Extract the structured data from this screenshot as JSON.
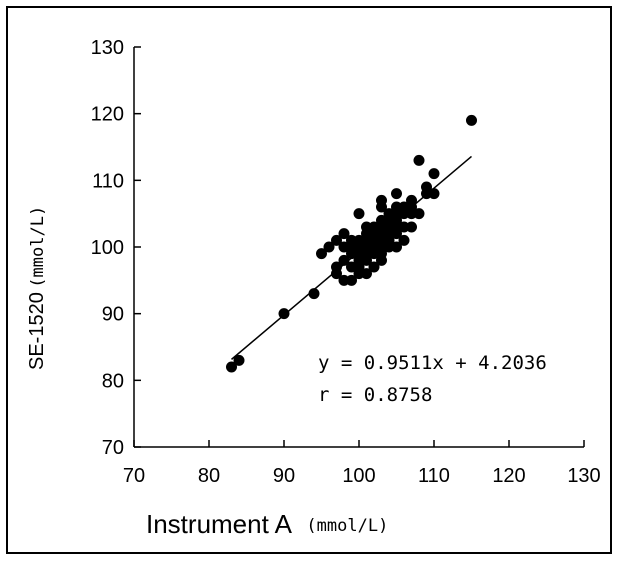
{
  "chart_data": {
    "type": "scatter",
    "title": "",
    "xlabel": "Instrument A",
    "xlabel_unit": "(mmol/L)",
    "ylabel": "SE-1520",
    "ylabel_unit": "(mmol/L)",
    "xlim": [
      70,
      130
    ],
    "ylim": [
      70,
      130
    ],
    "x_ticks": [
      "70",
      "80",
      "90",
      "100",
      "110",
      "120",
      "130"
    ],
    "y_ticks": [
      "70",
      "80",
      "90",
      "100",
      "110",
      "120",
      "130"
    ],
    "grid": false,
    "legend": "none",
    "regression": {
      "slope": 0.9511,
      "intercept": 4.2036,
      "x_range": [
        83,
        115
      ],
      "equation_label": "y = 0.9511x + 4.2036",
      "r_label": "r = 0.8758"
    },
    "points": [
      [
        83,
        82
      ],
      [
        84,
        83
      ],
      [
        90,
        90
      ],
      [
        94,
        93
      ],
      [
        95,
        99
      ],
      [
        96,
        100
      ],
      [
        97,
        101
      ],
      [
        97,
        97
      ],
      [
        97,
        96
      ],
      [
        98,
        95
      ],
      [
        98,
        98
      ],
      [
        98,
        100
      ],
      [
        98,
        102
      ],
      [
        99,
        95
      ],
      [
        99,
        97
      ],
      [
        99,
        99
      ],
      [
        99,
        100
      ],
      [
        99,
        101
      ],
      [
        100,
        96
      ],
      [
        100,
        97
      ],
      [
        100,
        98
      ],
      [
        100,
        99
      ],
      [
        100,
        100
      ],
      [
        100,
        101
      ],
      [
        100,
        105
      ],
      [
        101,
        96
      ],
      [
        101,
        98
      ],
      [
        101,
        99
      ],
      [
        101,
        100
      ],
      [
        101,
        101
      ],
      [
        101,
        102
      ],
      [
        101,
        103
      ],
      [
        102,
        97
      ],
      [
        102,
        99
      ],
      [
        102,
        100
      ],
      [
        102,
        101
      ],
      [
        102,
        102
      ],
      [
        102,
        103
      ],
      [
        103,
        98
      ],
      [
        103,
        99
      ],
      [
        103,
        100
      ],
      [
        103,
        101
      ],
      [
        103,
        102
      ],
      [
        103,
        103
      ],
      [
        103,
        104
      ],
      [
        103,
        106
      ],
      [
        103,
        107
      ],
      [
        104,
        100
      ],
      [
        104,
        101
      ],
      [
        104,
        102
      ],
      [
        104,
        103
      ],
      [
        104,
        104
      ],
      [
        104,
        105
      ],
      [
        105,
        100
      ],
      [
        105,
        102
      ],
      [
        105,
        103
      ],
      [
        105,
        104
      ],
      [
        105,
        105
      ],
      [
        105,
        106
      ],
      [
        105,
        108
      ],
      [
        106,
        101
      ],
      [
        106,
        103
      ],
      [
        106,
        105
      ],
      [
        106,
        106
      ],
      [
        107,
        103
      ],
      [
        107,
        105
      ],
      [
        107,
        106
      ],
      [
        107,
        107
      ],
      [
        108,
        105
      ],
      [
        108,
        113
      ],
      [
        109,
        108
      ],
      [
        109,
        109
      ],
      [
        110,
        111
      ],
      [
        110,
        108
      ],
      [
        115,
        119
      ]
    ]
  }
}
